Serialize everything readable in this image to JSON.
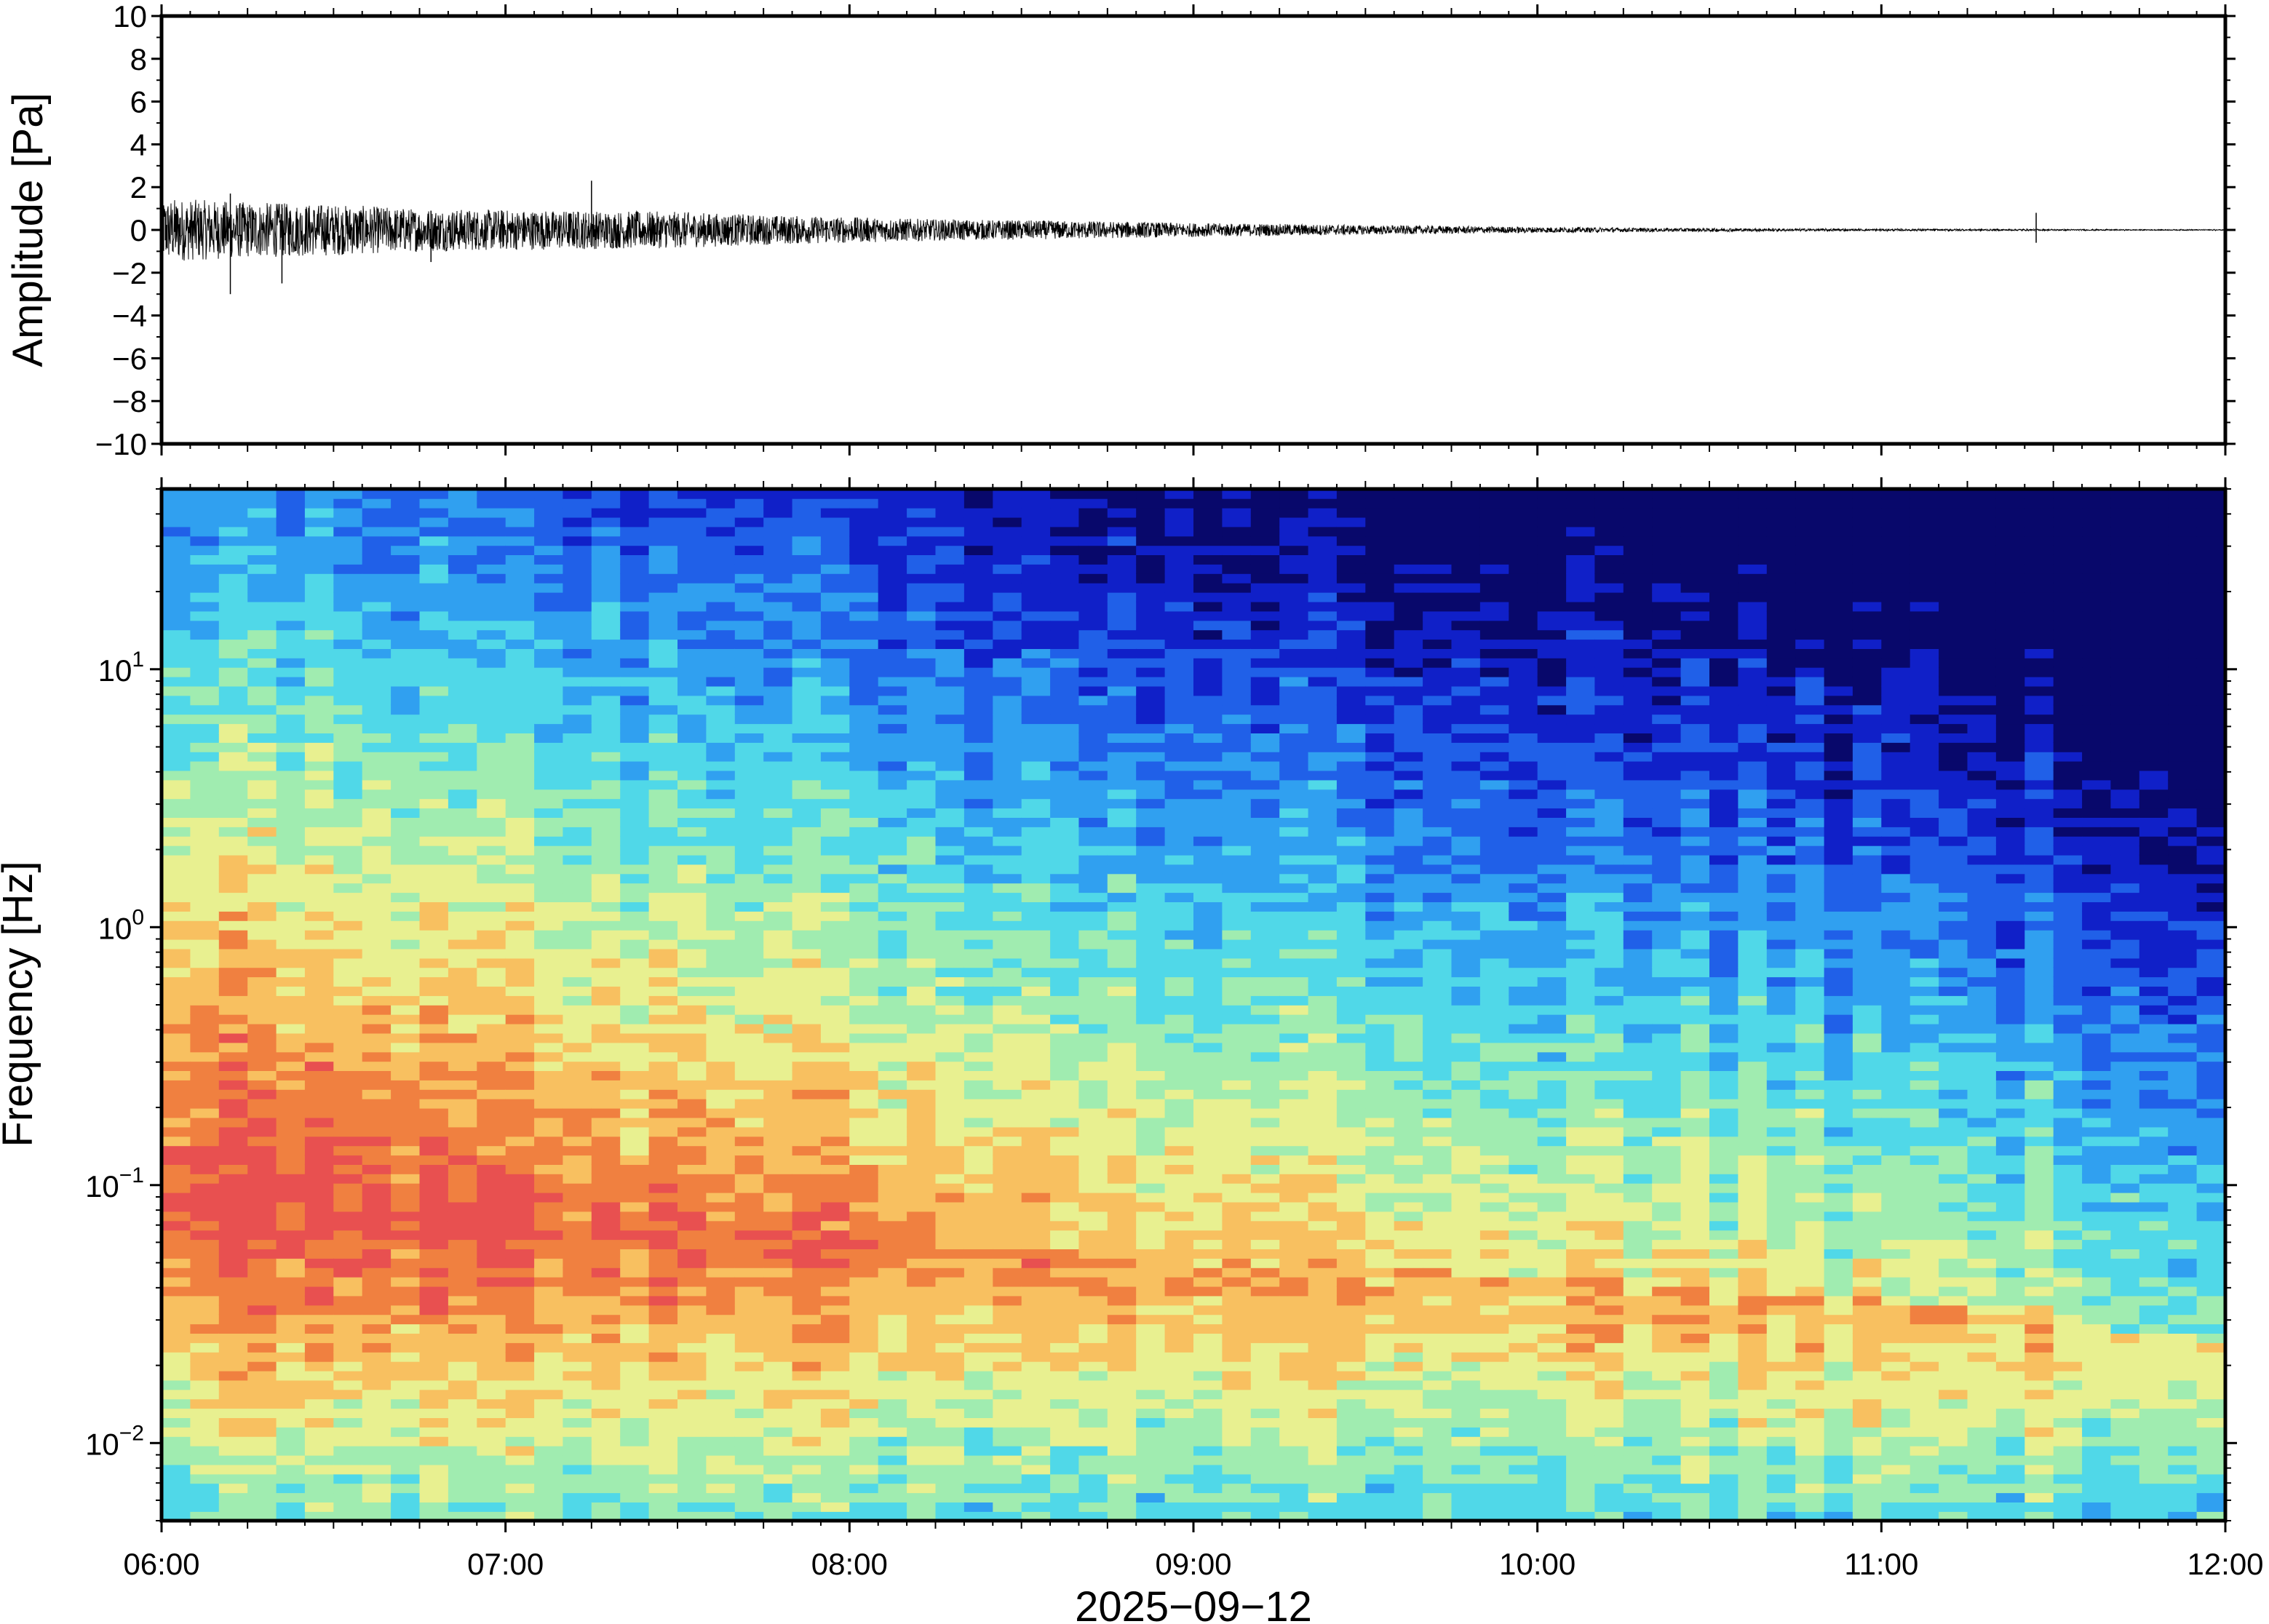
{
  "chart_data": [
    {
      "type": "line",
      "panel": "waveform",
      "ylabel": "Amplitude [Pa]",
      "ylim": [
        -10,
        10
      ],
      "yticks": [
        10,
        8,
        6,
        4,
        2,
        0,
        -2,
        -4,
        -6,
        -8,
        -10
      ],
      "ytick_labels": [
        "10",
        "8",
        "6",
        "4",
        "2",
        "0",
        "−2",
        "−4",
        "−6",
        "−8",
        "−10"
      ],
      "xlim": [
        "06:00",
        "12:00"
      ],
      "series": [
        {
          "color": "#000000",
          "envelope": {
            "x_hours": [
              6.0,
              6.25,
              6.5,
              6.75,
              7.0,
              7.25,
              7.5,
              7.75,
              8.0,
              8.25,
              8.5,
              8.75,
              9.0,
              9.25,
              9.5,
              9.75,
              10.0,
              10.25,
              10.5,
              10.75,
              11.0,
              11.25,
              11.5,
              11.75,
              12.0
            ],
            "half_amplitude_pa": [
              1.5,
              1.3,
              1.2,
              1.0,
              0.95,
              0.9,
              0.85,
              0.7,
              0.6,
              0.5,
              0.45,
              0.4,
              0.32,
              0.28,
              0.22,
              0.18,
              0.14,
              0.1,
              0.08,
              0.06,
              0.05,
              0.04,
              0.03,
              0.02,
              0.02
            ]
          },
          "spikes": [
            {
              "x": "06:12",
              "min": -3.0,
              "max": 1.7
            },
            {
              "x": "06:21",
              "min": -2.5,
              "max": 1.2
            },
            {
              "x": "07:15",
              "min": -0.8,
              "max": 2.3
            },
            {
              "x": "06:47",
              "min": -1.5,
              "max": 0.9
            },
            {
              "x": "11:27",
              "min": -0.6,
              "max": 0.8
            }
          ]
        }
      ]
    },
    {
      "type": "heatmap",
      "panel": "spectrogram",
      "ylabel": "Frequency [Hz]",
      "yscale": "log",
      "ylim": [
        0.005,
        50
      ],
      "yticks": [
        0.01,
        0.1,
        1,
        10
      ],
      "ytick_labels": [
        {
          "base": "10",
          "exp": "−2"
        },
        {
          "base": "10",
          "exp": "−1"
        },
        {
          "base": "10",
          "exp": "0"
        },
        {
          "base": "10",
          "exp": "1"
        }
      ],
      "xlabel": "2025−09−12",
      "xlim": [
        "06:00",
        "12:00"
      ],
      "xticks": [
        "06:00",
        "07:00",
        "08:00",
        "09:00",
        "10:00",
        "11:00",
        "12:00"
      ],
      "colormap": "jet",
      "color_levels": [
        "#08086b",
        "#1020c8",
        "#2060e8",
        "#30a0f0",
        "#50d8e8",
        "#a0ecb0",
        "#e8f090",
        "#f8c060",
        "#f08040",
        "#e85050"
      ],
      "peak_log10_frequency_by_hour": [
        {
          "x_hours": 6.0,
          "peak": -1.05
        },
        {
          "x_hours": 7.0,
          "peak": -1.15
        },
        {
          "x_hours": 8.0,
          "peak": -1.2
        },
        {
          "x_hours": 9.0,
          "peak": -1.3
        },
        {
          "x_hours": 10.0,
          "peak": -1.35
        },
        {
          "x_hours": 11.0,
          "peak": -1.45
        },
        {
          "x_hours": 12.0,
          "peak": -1.6
        }
      ],
      "grid": false
    }
  ]
}
